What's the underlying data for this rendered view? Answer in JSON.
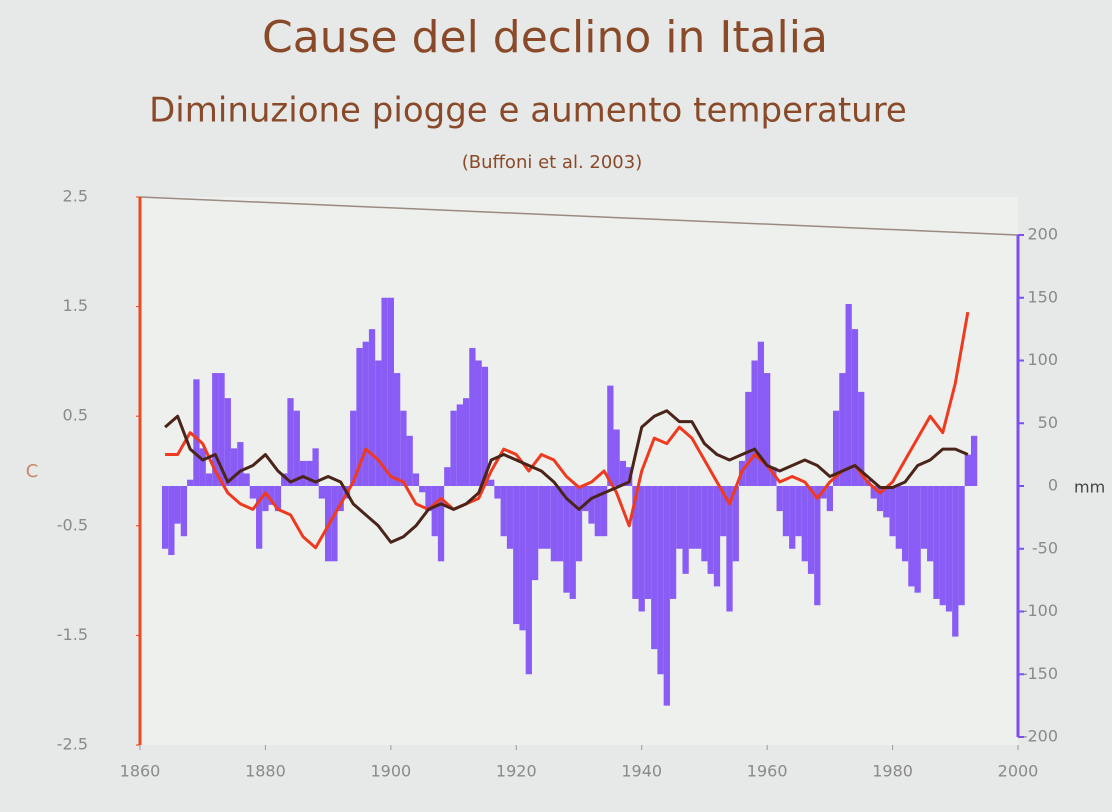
{
  "chart_data": {
    "type": "combo",
    "title": "Cause del declino in Italia",
    "subtitle": "Diminuzione piogge e aumento temperature",
    "note": "(Buffoni et al. 2003)",
    "ylabel": "C",
    "y2label": "mm",
    "xlim": [
      1860,
      2000
    ],
    "xticks": [
      1860,
      1880,
      1900,
      1920,
      1940,
      1960,
      1980,
      2000
    ],
    "ylim": [
      -2.5,
      2.5
    ],
    "yticks": [
      -2.5,
      -1.5,
      -0.5,
      0.5,
      1.5,
      2.5
    ],
    "y2lim": [
      -200,
      200
    ],
    "y2ticks": [
      -200,
      -150,
      -100,
      -50,
      0,
      50,
      100,
      150,
      200
    ],
    "series": [
      {
        "type": "bar",
        "axis": "y2",
        "color": "#8a5cf6",
        "x": [
          1864,
          1865,
          1866,
          1867,
          1868,
          1869,
          1870,
          1871,
          1872,
          1873,
          1874,
          1875,
          1876,
          1877,
          1878,
          1879,
          1880,
          1881,
          1882,
          1883,
          1884,
          1885,
          1886,
          1887,
          1888,
          1889,
          1890,
          1891,
          1892,
          1893,
          1894,
          1895,
          1896,
          1897,
          1898,
          1899,
          1900,
          1901,
          1902,
          1903,
          1904,
          1905,
          1906,
          1907,
          1908,
          1909,
          1910,
          1911,
          1912,
          1913,
          1914,
          1915,
          1916,
          1917,
          1918,
          1919,
          1920,
          1921,
          1922,
          1923,
          1924,
          1925,
          1926,
          1927,
          1928,
          1929,
          1930,
          1931,
          1932,
          1933,
          1934,
          1935,
          1936,
          1937,
          1938,
          1939,
          1940,
          1941,
          1942,
          1943,
          1944,
          1945,
          1946,
          1947,
          1948,
          1949,
          1950,
          1951,
          1952,
          1953,
          1954,
          1955,
          1956,
          1957,
          1958,
          1959,
          1960,
          1961,
          1962,
          1963,
          1964,
          1965,
          1966,
          1967,
          1968,
          1969,
          1970,
          1971,
          1972,
          1973,
          1974,
          1975,
          1976,
          1977,
          1978,
          1979,
          1980,
          1981,
          1982,
          1983,
          1984,
          1985,
          1986,
          1987,
          1988,
          1989,
          1990,
          1991,
          1992,
          1993
        ],
        "values": [
          -50,
          -55,
          -30,
          -40,
          5,
          85,
          30,
          10,
          90,
          90,
          70,
          30,
          35,
          10,
          -10,
          -50,
          -20,
          -15,
          -20,
          10,
          70,
          60,
          20,
          20,
          30,
          -10,
          -60,
          -60,
          -20,
          -10,
          60,
          110,
          115,
          125,
          100,
          150,
          150,
          90,
          60,
          40,
          10,
          -5,
          -20,
          -40,
          -60,
          15,
          60,
          65,
          70,
          110,
          100,
          95,
          5,
          -10,
          -40,
          -50,
          -110,
          -115,
          -150,
          -75,
          -50,
          -50,
          -60,
          -60,
          -85,
          -90,
          -60,
          -20,
          -30,
          -40,
          -40,
          80,
          45,
          20,
          15,
          -90,
          -100,
          -90,
          -130,
          -150,
          -175,
          -90,
          -50,
          -70,
          -50,
          -50,
          -60,
          -70,
          -80,
          -40,
          -100,
          -60,
          20,
          75,
          100,
          115,
          90,
          15,
          -20,
          -40,
          -50,
          -40,
          -60,
          -70,
          -95,
          -10,
          -20,
          60,
          90,
          145,
          125,
          75,
          5,
          -10,
          -20,
          -25,
          -40,
          -50,
          -60,
          -80,
          -85,
          -50,
          -60,
          -90,
          -95,
          -100,
          -120,
          -95,
          25,
          40
        ]
      },
      {
        "type": "line",
        "color": "#ee3a1e",
        "x": [
          1864,
          1866,
          1868,
          1870,
          1872,
          1874,
          1876,
          1878,
          1880,
          1882,
          1884,
          1886,
          1888,
          1890,
          1892,
          1894,
          1896,
          1898,
          1900,
          1902,
          1904,
          1906,
          1908,
          1910,
          1912,
          1914,
          1916,
          1918,
          1920,
          1922,
          1924,
          1926,
          1928,
          1930,
          1932,
          1934,
          1936,
          1938,
          1940,
          1942,
          1944,
          1946,
          1948,
          1950,
          1952,
          1954,
          1956,
          1958,
          1960,
          1962,
          1964,
          1966,
          1968,
          1970,
          1972,
          1974,
          1976,
          1978,
          1980,
          1982,
          1984,
          1986,
          1988,
          1990,
          1992
        ],
        "values": [
          0.15,
          0.15,
          0.35,
          0.25,
          0.0,
          -0.2,
          -0.3,
          -0.35,
          -0.2,
          -0.35,
          -0.4,
          -0.6,
          -0.7,
          -0.5,
          -0.3,
          -0.1,
          0.2,
          0.1,
          -0.05,
          -0.1,
          -0.3,
          -0.35,
          -0.25,
          -0.35,
          -0.3,
          -0.25,
          0.0,
          0.2,
          0.15,
          0.0,
          0.15,
          0.1,
          -0.05,
          -0.15,
          -0.1,
          0.0,
          -0.2,
          -0.5,
          0.0,
          0.3,
          0.25,
          0.4,
          0.3,
          0.1,
          -0.1,
          -0.3,
          0.0,
          0.15,
          0.05,
          -0.1,
          -0.05,
          -0.1,
          -0.25,
          -0.1,
          0.0,
          0.05,
          -0.1,
          -0.2,
          -0.1,
          0.1,
          0.3,
          0.5,
          0.35,
          0.8,
          1.45
        ]
      },
      {
        "type": "line",
        "color": "#4a2418",
        "x": [
          1864,
          1866,
          1868,
          1870,
          1872,
          1874,
          1876,
          1878,
          1880,
          1882,
          1884,
          1886,
          1888,
          1890,
          1892,
          1894,
          1896,
          1898,
          1900,
          1902,
          1904,
          1906,
          1908,
          1910,
          1912,
          1914,
          1916,
          1918,
          1920,
          1922,
          1924,
          1926,
          1928,
          1930,
          1932,
          1934,
          1936,
          1938,
          1940,
          1942,
          1944,
          1946,
          1948,
          1950,
          1952,
          1954,
          1956,
          1958,
          1960,
          1962,
          1964,
          1966,
          1968,
          1970,
          1972,
          1974,
          1976,
          1978,
          1980,
          1982,
          1984,
          1986,
          1988,
          1990,
          1992
        ],
        "values": [
          0.4,
          0.5,
          0.2,
          0.1,
          0.15,
          -0.1,
          0.0,
          0.05,
          0.15,
          0.0,
          -0.1,
          -0.05,
          -0.1,
          -0.05,
          -0.1,
          -0.3,
          -0.4,
          -0.5,
          -0.65,
          -0.6,
          -0.5,
          -0.35,
          -0.3,
          -0.35,
          -0.3,
          -0.2,
          0.1,
          0.15,
          0.1,
          0.05,
          0.0,
          -0.1,
          -0.25,
          -0.35,
          -0.25,
          -0.2,
          -0.15,
          -0.1,
          0.4,
          0.5,
          0.55,
          0.45,
          0.45,
          0.25,
          0.15,
          0.1,
          0.15,
          0.2,
          0.05,
          0.0,
          0.05,
          0.1,
          0.05,
          -0.05,
          0.0,
          0.05,
          -0.05,
          -0.15,
          -0.15,
          -0.1,
          0.05,
          0.1,
          0.2,
          0.2,
          0.15
        ]
      }
    ]
  }
}
